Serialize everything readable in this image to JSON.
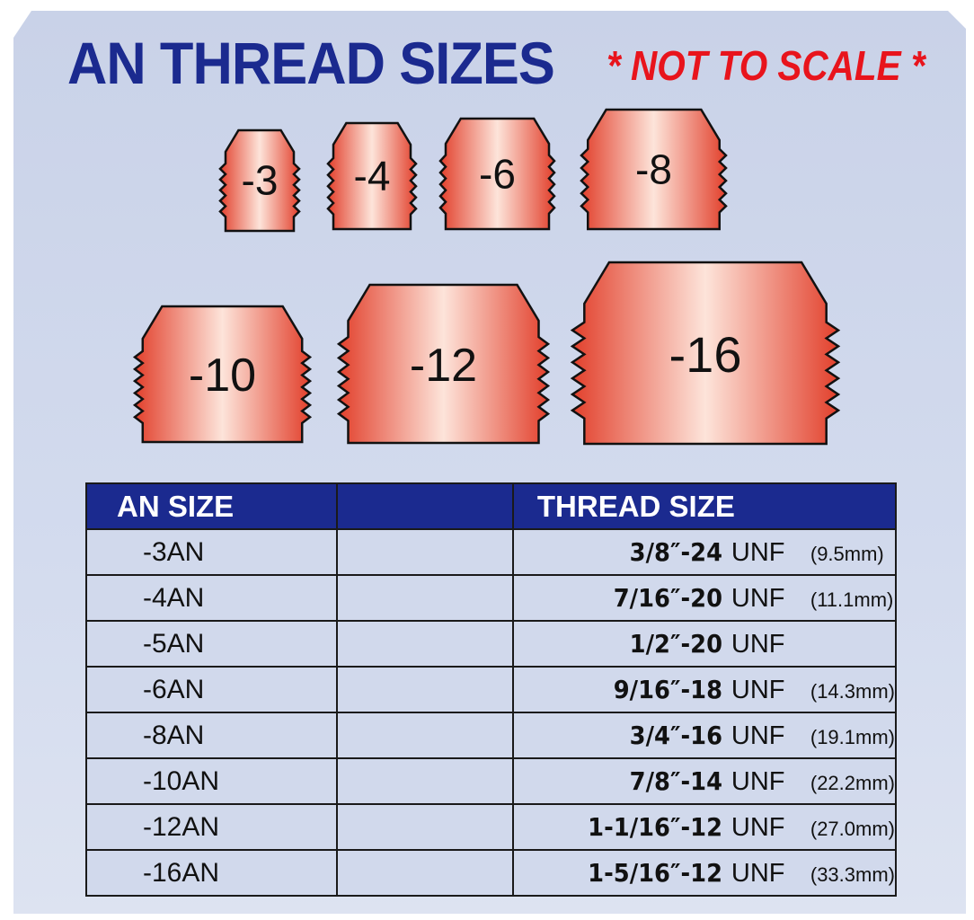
{
  "title": "AN THREAD SIZES",
  "note": "* NOT TO SCALE *",
  "colors": {
    "title": "#1b2a8f",
    "note": "#e8141c",
    "header_bg": "#1b2a8f",
    "row_bg": "#d1d9ec",
    "copper_edge": "#e2402c",
    "copper_mid": "#fde4da"
  },
  "fittings": [
    {
      "label": "-3"
    },
    {
      "label": "-4"
    },
    {
      "label": "-6"
    },
    {
      "label": "-8"
    },
    {
      "label": "-10"
    },
    {
      "label": "-12"
    },
    {
      "label": "-16"
    }
  ],
  "table": {
    "headers": [
      "AN SIZE",
      "",
      "THREAD SIZE"
    ],
    "rows": [
      {
        "an": "-3AN",
        "thread": "3/8″-24",
        "unf": "UNF",
        "mm": "(9.5mm)"
      },
      {
        "an": "-4AN",
        "thread": "7/16″-20",
        "unf": "UNF",
        "mm": "(11.1mm)"
      },
      {
        "an": "-5AN",
        "thread": "1/2″-20",
        "unf": "UNF",
        "mm": ""
      },
      {
        "an": "-6AN",
        "thread": "9/16″-18",
        "unf": "UNF",
        "mm": "(14.3mm)"
      },
      {
        "an": "-8AN",
        "thread": "3/4″-16",
        "unf": "UNF",
        "mm": "(19.1mm)"
      },
      {
        "an": "-10AN",
        "thread": "7/8″-14",
        "unf": "UNF",
        "mm": "(22.2mm)"
      },
      {
        "an": "-12AN",
        "thread": "1-1/16″-12",
        "unf": "UNF",
        "mm": "(27.0mm)"
      },
      {
        "an": "-16AN",
        "thread": "1-5/16″-12",
        "unf": "UNF",
        "mm": "(33.3mm)"
      }
    ]
  }
}
